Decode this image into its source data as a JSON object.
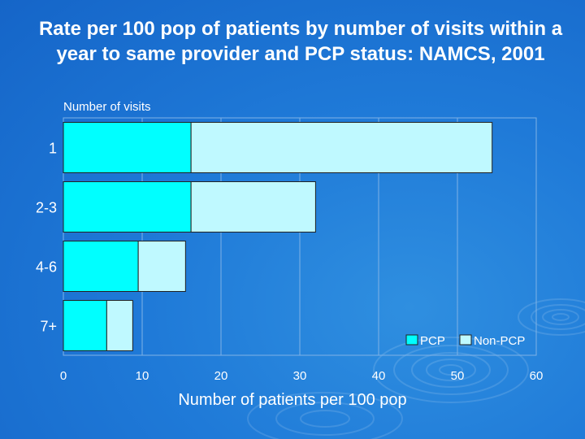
{
  "title": "Rate per 100 pop of patients by number of visits within a year to same provider and PCP status: NAMCS, 2001",
  "colors": {
    "pcp": "#00FFFF",
    "nonpcp": "#BFF9FF",
    "text": "#FFFFFF",
    "grid": "#7FB2E6"
  },
  "chart_data": {
    "type": "bar",
    "orientation": "horizontal",
    "stacked": true,
    "title": "Rate per 100 pop of patients by number of visits within a year to same provider and PCP status: NAMCS, 2001",
    "ylabel": "Number of visits",
    "xlabel": "Number of patients per 100 pop",
    "categories": [
      "1",
      "2-3",
      "4-6",
      "7+"
    ],
    "series": [
      {
        "name": "PCP",
        "values": [
          16.2,
          16.2,
          9.5,
          5.5
        ]
      },
      {
        "name": "Non-PCP",
        "values": [
          38.2,
          15.8,
          6.0,
          3.3
        ]
      }
    ],
    "xlim": [
      0,
      60
    ],
    "xticks": [
      "0",
      "10",
      "20",
      "30",
      "40",
      "50",
      "60"
    ],
    "grid": true,
    "legend": "bottom-right"
  }
}
